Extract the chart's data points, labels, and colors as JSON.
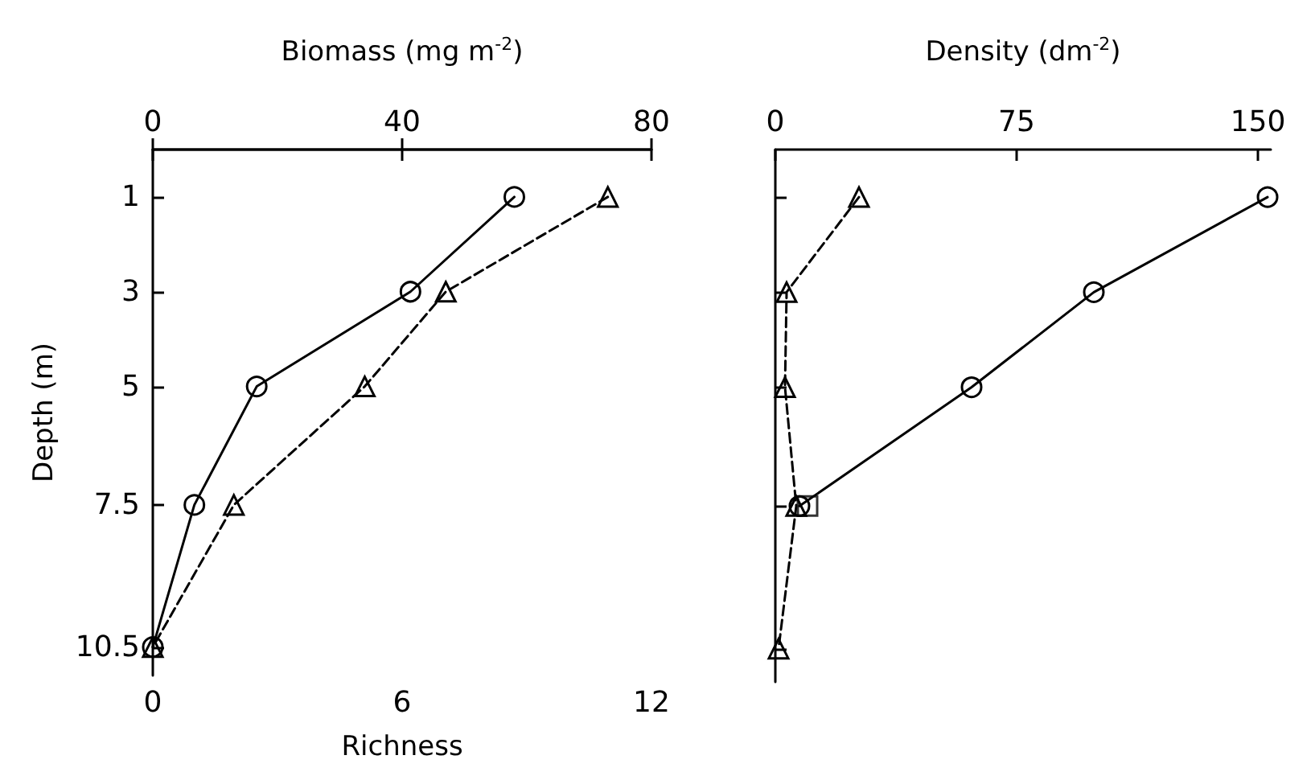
{
  "chart_data": [
    {
      "type": "line",
      "orientation": "horizontal",
      "x": [
        1,
        3,
        5,
        7.5,
        10.5
      ],
      "xlabel": "Richness",
      "x2label": "Biomass (mg m$^{-2}$)",
      "ylabel": "Depth (m)",
      "xlim": [
        0,
        12
      ],
      "xticks": [
        0,
        6,
        12
      ],
      "x2lim": [
        0,
        80
      ],
      "x2ticks": [
        0,
        40,
        80
      ],
      "ylim": [
        11.1,
        0
      ],
      "yticks": [
        1,
        3,
        5,
        7.5,
        10.5
      ],
      "grid": false,
      "series": [
        {
          "color": "#000000",
          "marker": "circle",
          "line_style": "solid",
          "values": [
            8.7,
            6.2,
            2.5,
            1.0,
            0
          ]
        },
        {
          "color": "#000000",
          "marker": "triangle",
          "line_style": "dashed",
          "axis": "x2",
          "values": [
            73,
            47,
            34,
            13,
            0
          ]
        }
      ]
    },
    {
      "type": "line",
      "orientation": "horizontal",
      "x": [
        1,
        3,
        5,
        7.5,
        10.5
      ],
      "xlabel": "Density (dm$^{-2}$)",
      "xlim": [
        0,
        154
      ],
      "xticks": [
        0,
        75,
        150
      ],
      "ylim": [
        11.2,
        0
      ],
      "yticks": [
        1,
        3,
        5,
        7.5,
        10.5
      ],
      "tick_labels": "x",
      "grid": false,
      "series": [
        {
          "color": "#000000",
          "marker": "circle",
          "line_style": "solid",
          "values": [
            153,
            99,
            61,
            7.5,
            null
          ]
        },
        {
          "color": "#000000",
          "marker": "triangle",
          "line_style": "dashed",
          "values": [
            26,
            3.5,
            3,
            6.5,
            1
          ]
        },
        {
          "type": "scatter",
          "color": "#000000",
          "marker": "square",
          "values": [
            null,
            null,
            null,
            10,
            null
          ]
        }
      ]
    }
  ]
}
